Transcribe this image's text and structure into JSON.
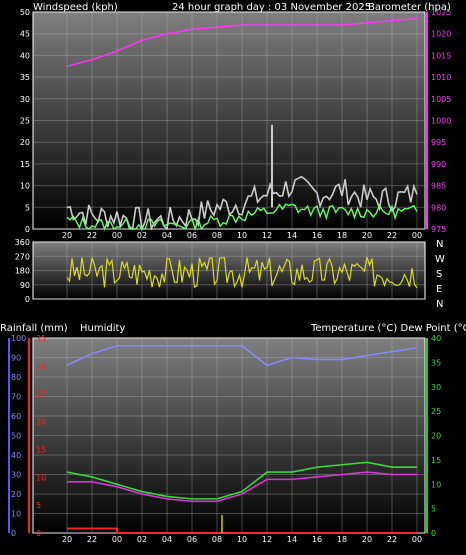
{
  "header": {
    "left_label": "Windspeed (kph)",
    "center_label": "24 hour graph day : 03 November 2025",
    "right_label": "Barometer (hpa)"
  },
  "lower_header": {
    "left_label_a": "Rainfall (mm)",
    "left_label_b": "Humidity",
    "right_label": "Temperature (°C) Dew Point (°C)"
  },
  "compass": [
    "N",
    "W",
    "S",
    "E",
    "N"
  ],
  "colors": {
    "barometer": "#ff33ff",
    "wind_gust": "#cccccc",
    "wind_avg": "#66ff66",
    "direction": "#dddd22",
    "humidity": "#8888ff",
    "temperature": "#33dd33",
    "dewpoint": "#dd33dd",
    "rain": "#ff2222",
    "rain_rate": "#cccc00"
  },
  "chart_data": [
    {
      "type": "line",
      "panel": "wind",
      "x_ticks": [
        "20",
        "22",
        "00",
        "02",
        "04",
        "06",
        "08",
        "10",
        "12",
        "14",
        "16",
        "18",
        "20",
        "22",
        "00"
      ],
      "ylim_left": [
        0,
        50
      ],
      "yticks_left": [
        0,
        5,
        10,
        15,
        20,
        25,
        30,
        35,
        40,
        45,
        50
      ],
      "ylim_right": [
        975,
        1025
      ],
      "yticks_right": [
        975,
        980,
        985,
        990,
        995,
        1000,
        1005,
        1010,
        1015,
        1020,
        1025
      ],
      "grid": true,
      "barometer": {
        "x": [
          0,
          1,
          2,
          3,
          4,
          5,
          6,
          7,
          8,
          9,
          10,
          11,
          12,
          13,
          14
        ],
        "values": [
          1012.5,
          1014,
          1016,
          1018.5,
          1020,
          1021,
          1021.5,
          1022,
          1022,
          1022,
          1022,
          1022,
          1022.5,
          1023,
          1023.5
        ]
      },
      "gust": {
        "x": [
          0,
          1,
          2,
          3,
          4,
          5,
          6,
          7,
          8,
          9,
          10,
          11,
          12,
          13,
          14
        ],
        "values": [
          5,
          3,
          3,
          2,
          2,
          3,
          5,
          6,
          8,
          10,
          8,
          9,
          7,
          7,
          8
        ],
        "max": 24
      },
      "average": {
        "x": [
          0,
          1,
          2,
          3,
          4,
          5,
          6,
          7,
          8,
          9,
          10,
          11,
          12,
          13,
          14
        ],
        "values": [
          2,
          1,
          1,
          1,
          1,
          1,
          2,
          3,
          4,
          5,
          4,
          4,
          4,
          4,
          4
        ]
      }
    },
    {
      "type": "scatter",
      "panel": "direction",
      "x_ticks": [
        "20",
        "22",
        "00",
        "02",
        "04",
        "06",
        "08",
        "10",
        "12",
        "14",
        "16",
        "18",
        "20",
        "22",
        "00"
      ],
      "ylim": [
        0,
        360
      ],
      "yticks": [
        0,
        90,
        180,
        270,
        360
      ],
      "grid": true
    },
    {
      "type": "line",
      "panel": "rain_hum_temp",
      "x_ticks": [
        "20",
        "22",
        "00",
        "02",
        "04",
        "06",
        "08",
        "10",
        "12",
        "14",
        "16",
        "18",
        "20",
        "22",
        "00"
      ],
      "humidity": {
        "ylim": [
          0,
          100
        ],
        "yticks": [
          0,
          10,
          20,
          30,
          40,
          50,
          60,
          70,
          80,
          90,
          100
        ],
        "x": [
          0,
          1,
          2,
          3,
          4,
          5,
          6,
          7,
          8,
          9,
          10,
          11,
          12,
          13,
          14
        ],
        "values": [
          86,
          92,
          96,
          96,
          96,
          96,
          96,
          96,
          86,
          90,
          89,
          89,
          91,
          93,
          95
        ]
      },
      "rainfall": {
        "ylim": [
          0,
          35
        ],
        "yticks": [
          0,
          5,
          10,
          15,
          20,
          25,
          30,
          35
        ],
        "x": [
          0,
          2,
          2,
          14
        ],
        "values": [
          0.8,
          0.8,
          0,
          0
        ]
      },
      "temperature": {
        "ylim": [
          0,
          40
        ],
        "yticks": [
          0,
          5,
          10,
          15,
          20,
          25,
          30,
          35,
          40
        ],
        "x": [
          0,
          1,
          2,
          3,
          4,
          5,
          6,
          7,
          8,
          9,
          10,
          11,
          12,
          13,
          14
        ],
        "values": [
          12.5,
          11.5,
          10,
          8.5,
          7.5,
          7,
          7,
          8.5,
          12.5,
          12.5,
          13.5,
          14,
          14.5,
          13.5,
          13.5
        ]
      },
      "dewpoint": {
        "x": [
          0,
          1,
          2,
          3,
          4,
          5,
          6,
          7,
          8,
          9,
          10,
          11,
          12,
          13,
          14
        ],
        "values": [
          10.5,
          10.5,
          9.5,
          8,
          7,
          6.5,
          6.5,
          8,
          11,
          11,
          11.5,
          12,
          12.5,
          12,
          12
        ]
      }
    }
  ]
}
